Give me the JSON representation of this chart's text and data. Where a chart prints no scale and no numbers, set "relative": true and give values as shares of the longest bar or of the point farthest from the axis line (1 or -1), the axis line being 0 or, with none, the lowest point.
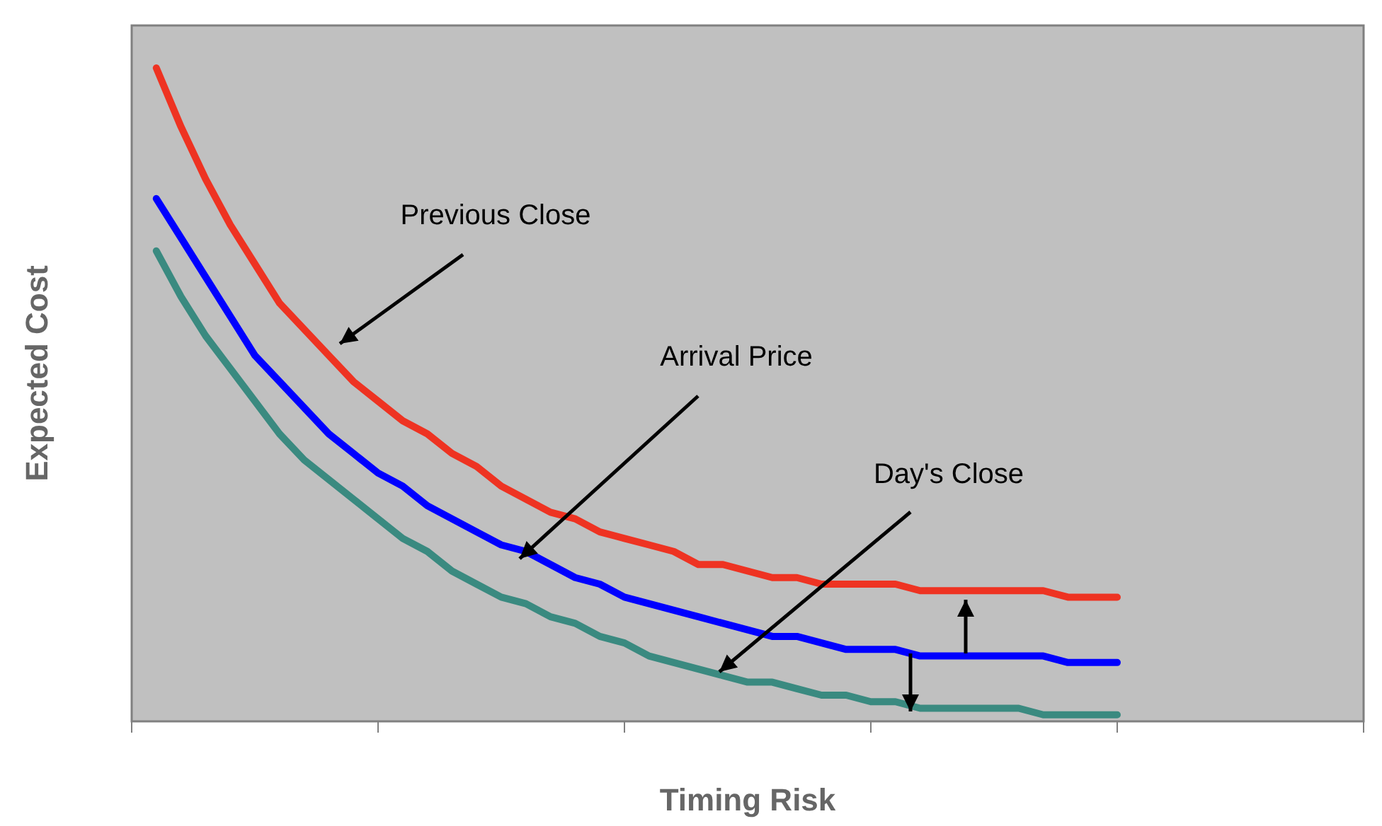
{
  "chart_data": {
    "type": "line",
    "annotations": [
      "Previous Close",
      "Arrival Price",
      "Day's Close"
    ],
    "xlabel": "Timing Risk",
    "ylabel": "Expected Cost",
    "relative": true,
    "legend": false,
    "grid": false,
    "marker": "none",
    "categories": [
      null,
      null,
      null,
      null,
      null,
      null,
      null,
      null,
      null,
      null,
      null,
      null,
      null,
      null,
      null,
      null,
      null,
      null,
      null,
      null,
      null,
      null,
      null,
      null,
      null,
      null,
      null,
      null,
      null,
      null,
      null,
      null,
      null,
      null,
      null,
      null,
      null,
      null,
      null,
      null,
      null,
      null,
      null,
      null,
      null,
      null,
      null,
      null,
      null,
      null,
      null
    ],
    "series": [
      {
        "color": "#ee3322",
        "values": [
          null,
          1,
          0.91,
          0.83,
          0.76,
          0.7,
          0.64,
          0.6,
          0.56,
          0.52,
          0.49,
          0.46,
          0.44,
          0.41,
          0.39,
          0.36,
          0.34,
          0.32,
          0.31,
          0.29,
          0.28,
          0.27,
          0.26,
          0.24,
          0.24,
          0.23,
          0.22,
          0.22,
          0.21,
          0.21,
          0.21,
          0.21,
          0.2,
          0.2,
          0.2,
          0.2,
          0.2,
          0.2,
          0.19,
          0.19,
          0.19,
          null,
          null,
          null,
          null,
          null,
          null,
          null,
          null,
          null,
          null
        ]
      },
      {
        "color": "#0000ff",
        "values": [
          null,
          0.8,
          0.74,
          0.68,
          0.62,
          0.56,
          0.52,
          0.48,
          0.44,
          0.41,
          0.38,
          0.36,
          0.33,
          0.31,
          0.29,
          0.27,
          0.26,
          0.24,
          0.22,
          0.21,
          0.19,
          0.18,
          0.17,
          0.16,
          0.15,
          0.14,
          0.13,
          0.13,
          0.12,
          0.11,
          0.11,
          0.11,
          0.1,
          0.1,
          0.1,
          0.1,
          0.1,
          0.1,
          0.09,
          0.09,
          0.09,
          null,
          null,
          null,
          null,
          null,
          null,
          null,
          null,
          null,
          null
        ]
      },
      {
        "color": "#3a8a80",
        "values": [
          null,
          0.72,
          0.65,
          0.59,
          0.54,
          0.49,
          0.44,
          0.4,
          0.37,
          0.34,
          0.31,
          0.28,
          0.26,
          0.23,
          0.21,
          0.19,
          0.18,
          0.16,
          0.15,
          0.13,
          0.12,
          0.1,
          0.09,
          0.08,
          0.07,
          0.06,
          0.06,
          0.05,
          0.04,
          0.04,
          0.03,
          0.03,
          0.02,
          0.02,
          0.02,
          0.02,
          0.02,
          0.01,
          0.01,
          0.01,
          0.01,
          null,
          null,
          null,
          null,
          null,
          null,
          null,
          null,
          null,
          null
        ]
      }
    ]
  }
}
